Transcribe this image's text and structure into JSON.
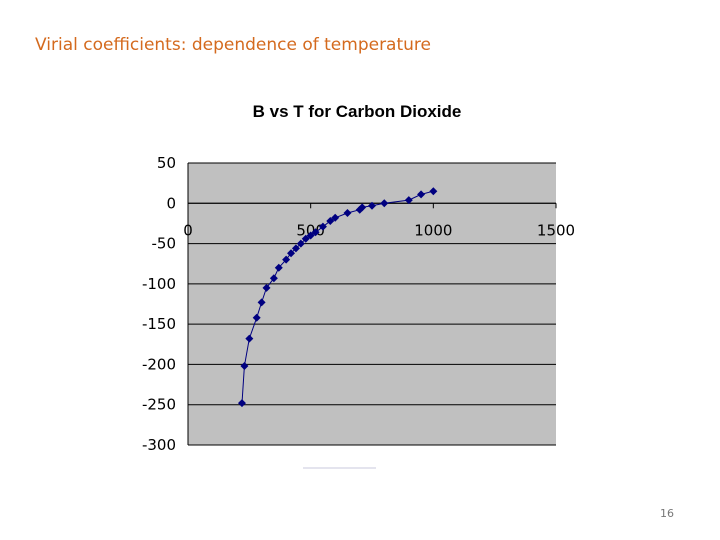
{
  "slide": {
    "title": "Virial coefficients: dependence of temperature",
    "page_number": "16"
  },
  "chart_data": {
    "type": "scatter",
    "title": "B vs T for Carbon Dioxide",
    "xlabel": "",
    "ylabel": "",
    "xlim": [
      0,
      1500
    ],
    "ylim": [
      -300,
      50
    ],
    "x_ticks": [
      0,
      500,
      1000,
      1500
    ],
    "y_ticks": [
      50,
      0,
      -50,
      -100,
      -150,
      -200,
      -250,
      -300
    ],
    "grid": "horizontal",
    "background": "#c0c0c0",
    "series": [
      {
        "color": "#000080",
        "marker": "diamond",
        "line": true,
        "x": [
          220,
          230,
          250,
          280,
          300,
          320,
          350,
          370,
          400,
          420,
          440,
          460,
          480,
          500,
          520,
          550,
          580,
          600,
          650,
          700,
          710,
          750,
          800,
          900,
          950,
          1000
        ],
        "y": [
          -248,
          -202,
          -168,
          -142,
          -123,
          -105,
          -93,
          -80,
          -70,
          -62,
          -56,
          -50,
          -44,
          -40,
          -36,
          -29,
          -22,
          -18,
          -12,
          -8,
          -5,
          -3,
          0,
          4,
          11,
          15
        ]
      }
    ]
  }
}
